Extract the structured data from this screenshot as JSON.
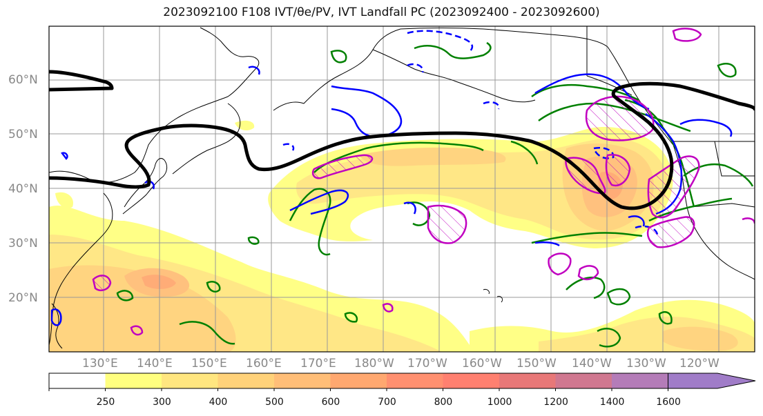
{
  "title": "2023092100 F108 IVT/θe/PV, IVT Landfall PC (2023092400 - 2023092600)",
  "lat_labels": [
    "60°N",
    "50°N",
    "40°N",
    "30°N",
    "20°N"
  ],
  "lon_labels": [
    "130°E",
    "140°E",
    "150°E",
    "160°E",
    "170°E",
    "180°W",
    "170°W",
    "160°W",
    "150°W",
    "140°W",
    "130°W",
    "120°W"
  ],
  "colorbar": {
    "ticks": [
      "250",
      "300",
      "400",
      "500",
      "600",
      "700",
      "800",
      "1000",
      "1200",
      "1400",
      "1600"
    ],
    "colors": [
      "#ffffff",
      "#ffff80",
      "#ffe680",
      "#ffd27a",
      "#ffbe78",
      "#ffa870",
      "#ff9070",
      "#ff8070",
      "#e87878",
      "#d07890",
      "#b47cb8",
      "#a07cc8"
    ]
  },
  "colors": {
    "ivt_contour": "#0000ff",
    "theta_e_contour": "#008000",
    "pv_contour": "#c000c0",
    "landfall_line": "#000000"
  }
}
